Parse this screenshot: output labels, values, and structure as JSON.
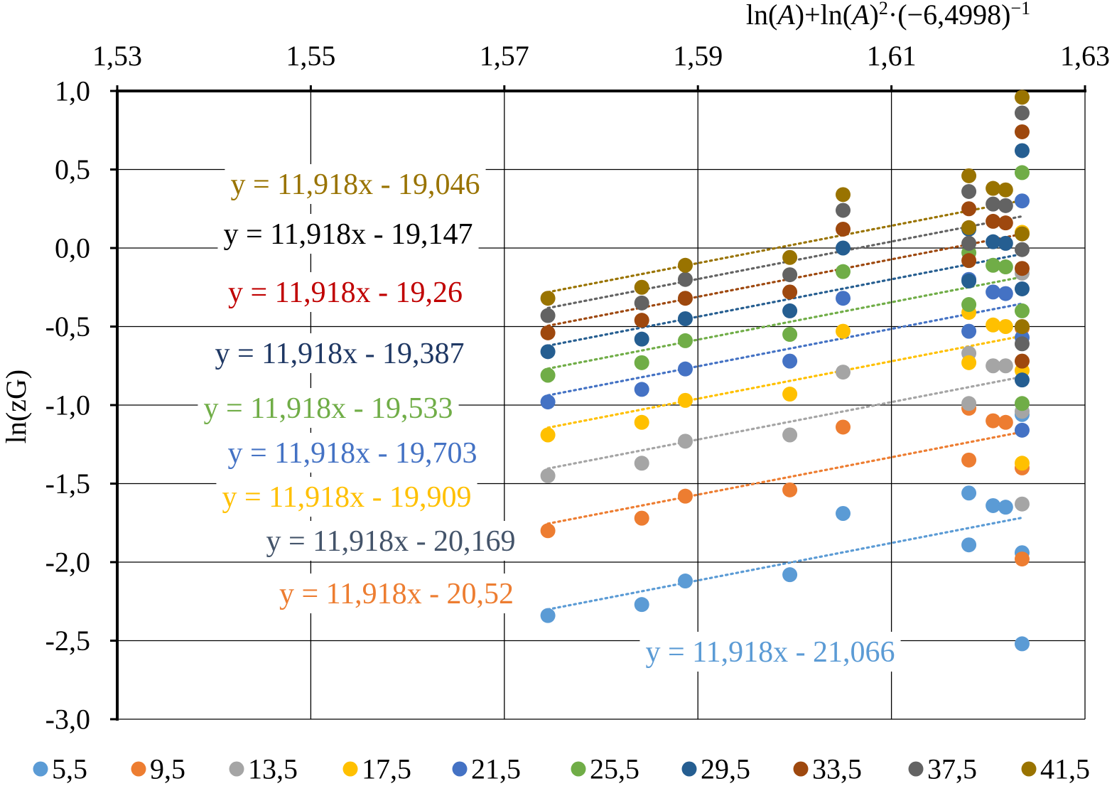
{
  "chart_data": {
    "type": "scatter",
    "title": "",
    "xlabel_parts": [
      "ln(",
      "A",
      ")+ln(",
      "A",
      ")",
      "2",
      "·(−6,4998)",
      "−1"
    ],
    "ylabel": "ln(zG)",
    "xlim": [
      1.53,
      1.63
    ],
    "ylim": [
      -3.0,
      1.0
    ],
    "x_ticks": [
      "1,53",
      "1,55",
      "1,57",
      "1,59",
      "1,61",
      "1,63"
    ],
    "y_ticks": [
      "1,0",
      "0,5",
      "0,0",
      "-0,5",
      "-1,0",
      "-1,5",
      "-2,0",
      "-2,5",
      "-3,0"
    ],
    "x_axis_position": "top",
    "grid": true,
    "legend": "bottom",
    "trendline_slope": 11.918,
    "series": [
      {
        "name": "5,5",
        "color": "#5B9BD5",
        "intercept": -21.066,
        "equation": "y = 11,918x - 21,066",
        "points": [
          [
            1.5745,
            -2.34
          ],
          [
            1.5842,
            -2.27
          ],
          [
            1.5887,
            -2.12
          ],
          [
            1.5995,
            -2.08
          ],
          [
            1.605,
            -1.69
          ],
          [
            1.618,
            -1.56
          ],
          [
            1.618,
            -1.89
          ],
          [
            1.6205,
            -1.64
          ],
          [
            1.6218,
            -1.65
          ],
          [
            1.6235,
            -2.52
          ],
          [
            1.6235,
            -1.94
          ],
          [
            1.6235,
            -1.06
          ]
        ]
      },
      {
        "name": "9,5",
        "color": "#ED7D31",
        "intercept": -20.52,
        "equation": "y = 11,918x - 20,52",
        "points": [
          [
            1.5745,
            -1.8
          ],
          [
            1.5842,
            -1.72
          ],
          [
            1.5887,
            -1.58
          ],
          [
            1.5995,
            -1.54
          ],
          [
            1.605,
            -1.14
          ],
          [
            1.618,
            -1.02
          ],
          [
            1.618,
            -1.35
          ],
          [
            1.6205,
            -1.1
          ],
          [
            1.6218,
            -1.11
          ],
          [
            1.6235,
            -1.98
          ],
          [
            1.6235,
            -1.4
          ],
          [
            1.6235,
            -0.51
          ]
        ]
      },
      {
        "name": "13,5",
        "color": "#A5A5A5",
        "intercept": -20.169,
        "equation": "y = 11,918x - 20,169",
        "points": [
          [
            1.5745,
            -1.45
          ],
          [
            1.5842,
            -1.37
          ],
          [
            1.5887,
            -1.23
          ],
          [
            1.5995,
            -1.19
          ],
          [
            1.605,
            -0.79
          ],
          [
            1.618,
            -0.67
          ],
          [
            1.618,
            -0.99
          ],
          [
            1.6205,
            -0.75
          ],
          [
            1.6218,
            -0.75
          ],
          [
            1.6235,
            -1.63
          ],
          [
            1.6235,
            -1.04
          ],
          [
            1.6235,
            -0.16
          ]
        ]
      },
      {
        "name": "17,5",
        "color": "#FFC000",
        "intercept": -19.909,
        "equation": "y = 11,918x - 19,909",
        "points": [
          [
            1.5745,
            -1.19
          ],
          [
            1.5842,
            -1.11
          ],
          [
            1.5887,
            -0.97
          ],
          [
            1.5995,
            -0.93
          ],
          [
            1.605,
            -0.53
          ],
          [
            1.618,
            -0.41
          ],
          [
            1.618,
            -0.73
          ],
          [
            1.6205,
            -0.49
          ],
          [
            1.6218,
            -0.5
          ],
          [
            1.6235,
            -1.37
          ],
          [
            1.6235,
            -0.78
          ],
          [
            1.6235,
            0.1
          ]
        ]
      },
      {
        "name": "21,5",
        "color": "#4472C4",
        "intercept": -19.703,
        "equation": "y = 11,918x - 19,703",
        "points": [
          [
            1.5745,
            -0.98
          ],
          [
            1.5842,
            -0.9
          ],
          [
            1.5887,
            -0.77
          ],
          [
            1.5995,
            -0.72
          ],
          [
            1.605,
            -0.32
          ],
          [
            1.618,
            -0.2
          ],
          [
            1.618,
            -0.53
          ],
          [
            1.6205,
            -0.28
          ],
          [
            1.6218,
            -0.29
          ],
          [
            1.6235,
            -1.16
          ],
          [
            1.6235,
            -0.57
          ],
          [
            1.6235,
            0.3
          ]
        ]
      },
      {
        "name": "25,5",
        "color": "#70AD47",
        "intercept": -19.533,
        "equation": "y = 11,918x - 19,533",
        "points": [
          [
            1.5745,
            -0.81
          ],
          [
            1.5842,
            -0.73
          ],
          [
            1.5887,
            -0.59
          ],
          [
            1.5995,
            -0.55
          ],
          [
            1.605,
            -0.15
          ],
          [
            1.618,
            -0.03
          ],
          [
            1.618,
            -0.36
          ],
          [
            1.6205,
            -0.11
          ],
          [
            1.6218,
            -0.12
          ],
          [
            1.6235,
            -0.99
          ],
          [
            1.6235,
            -0.4
          ],
          [
            1.6235,
            0.48
          ]
        ]
      },
      {
        "name": "29,5",
        "color": "#255E91",
        "intercept": -19.387,
        "equation": "y = 11,918x - 19,387",
        "points": [
          [
            1.5745,
            -0.66
          ],
          [
            1.5842,
            -0.58
          ],
          [
            1.5887,
            -0.45
          ],
          [
            1.5995,
            -0.4
          ],
          [
            1.605,
            0.0
          ],
          [
            1.618,
            0.12
          ],
          [
            1.618,
            -0.21
          ],
          [
            1.6205,
            0.04
          ],
          [
            1.6218,
            0.03
          ],
          [
            1.6235,
            -0.84
          ],
          [
            1.6235,
            -0.26
          ],
          [
            1.6235,
            0.62
          ]
        ]
      },
      {
        "name": "33,5",
        "color": "#9E480E",
        "intercept": -19.26,
        "equation": "y = 11,918x - 19,26",
        "points": [
          [
            1.5745,
            -0.54
          ],
          [
            1.5842,
            -0.46
          ],
          [
            1.5887,
            -0.32
          ],
          [
            1.5995,
            -0.28
          ],
          [
            1.605,
            0.12
          ],
          [
            1.618,
            0.25
          ],
          [
            1.618,
            -0.08
          ],
          [
            1.6205,
            0.17
          ],
          [
            1.6218,
            0.16
          ],
          [
            1.6235,
            -0.72
          ],
          [
            1.6235,
            -0.13
          ],
          [
            1.6235,
            0.74
          ]
        ]
      },
      {
        "name": "37,5",
        "color": "#636363",
        "intercept": -19.147,
        "equation": "y = 11,918x - 19,147",
        "points": [
          [
            1.5745,
            -0.43
          ],
          [
            1.5842,
            -0.35
          ],
          [
            1.5887,
            -0.2
          ],
          [
            1.5995,
            -0.17
          ],
          [
            1.605,
            0.24
          ],
          [
            1.618,
            0.36
          ],
          [
            1.618,
            0.03
          ],
          [
            1.6205,
            0.28
          ],
          [
            1.6218,
            0.27
          ],
          [
            1.6235,
            -0.61
          ],
          [
            1.6235,
            -0.01
          ],
          [
            1.6235,
            0.86
          ]
        ]
      },
      {
        "name": "41,5",
        "color": "#997300",
        "intercept": -19.046,
        "equation": "y = 11,918x - 19,046",
        "points": [
          [
            1.5745,
            -0.32
          ],
          [
            1.5842,
            -0.25
          ],
          [
            1.5887,
            -0.11
          ],
          [
            1.5995,
            -0.06
          ],
          [
            1.605,
            0.34
          ],
          [
            1.618,
            0.46
          ],
          [
            1.618,
            0.13
          ],
          [
            1.6205,
            0.38
          ],
          [
            1.6218,
            0.37
          ],
          [
            1.6235,
            -0.5
          ],
          [
            1.6235,
            0.09
          ],
          [
            1.6235,
            0.96
          ]
        ]
      }
    ],
    "equation_labels": [
      {
        "series": "41,5",
        "color": "#997300"
      },
      {
        "series": "37,5",
        "color": "#000000"
      },
      {
        "series": "33,5",
        "color": "#C00000"
      },
      {
        "series": "29,5",
        "color": "#1F3864"
      },
      {
        "series": "25,5",
        "color": "#70AD47"
      },
      {
        "series": "21,5",
        "color": "#4472C4"
      },
      {
        "series": "17,5",
        "color": "#FFC000"
      },
      {
        "series": "13,5",
        "color": "#44546A"
      },
      {
        "series": "9,5",
        "color": "#ED7D31"
      },
      {
        "series": "5,5",
        "color": "#5B9BD5"
      }
    ]
  }
}
